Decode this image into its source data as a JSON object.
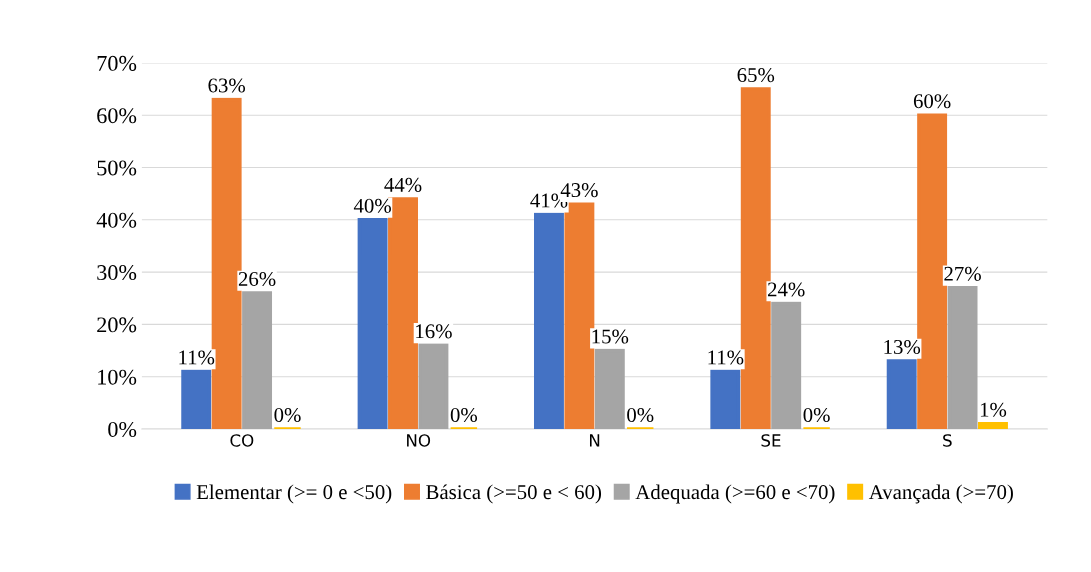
{
  "chart_data": {
    "type": "bar",
    "categories": [
      "CO",
      "NO",
      "N",
      "SE",
      "S"
    ],
    "series": [
      {
        "name": "Elementar (>= 0 e <50)",
        "color": "#4472c4",
        "values": [
          11,
          40,
          41,
          11,
          13
        ],
        "value_labels": [
          "11%",
          "40%",
          "41%",
          "11%",
          "13%"
        ]
      },
      {
        "name": "Básica (>=50 e < 60)",
        "color": "#ed7d31",
        "values": [
          63,
          44,
          43,
          65,
          60
        ],
        "value_labels": [
          "63%",
          "44%",
          "43%",
          "65%",
          "60%"
        ]
      },
      {
        "name": "Adequada (>=60 e <70)",
        "color": "#a5a5a5",
        "values": [
          26,
          16,
          15,
          24,
          27
        ],
        "value_labels": [
          "26%",
          "16%",
          "15%",
          "24%",
          "27%"
        ]
      },
      {
        "name": "Avançada (>=70)",
        "color": "#ffc000",
        "values": [
          0,
          0,
          0,
          0,
          1
        ],
        "value_labels": [
          "0%",
          "0%",
          "0%",
          "0%",
          "1%"
        ]
      }
    ],
    "ylim": [
      0,
      70
    ],
    "yticks": [
      {
        "value": 0,
        "label": "0%"
      },
      {
        "value": 10,
        "label": "10%"
      },
      {
        "value": 20,
        "label": "20%"
      },
      {
        "value": 30,
        "label": "30%"
      },
      {
        "value": 40,
        "label": "40%"
      },
      {
        "value": 50,
        "label": "50%"
      },
      {
        "value": 60,
        "label": "60%"
      },
      {
        "value": 70,
        "label": "70%"
      }
    ],
    "grid": "y",
    "legend": "bottom"
  }
}
